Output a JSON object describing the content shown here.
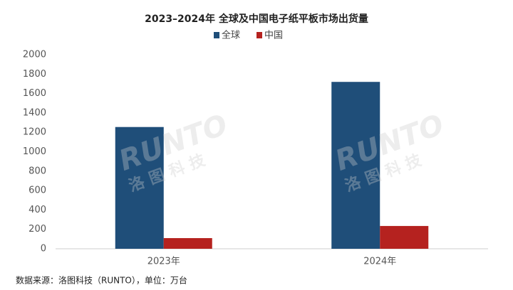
{
  "chart_data": {
    "type": "bar",
    "title": "2023–2024年 全球及中国电子纸平板市场出货量",
    "categories": [
      "2023年",
      "2024年"
    ],
    "series": [
      {
        "name": "全球",
        "color": "#1f4e79",
        "values": [
          1255,
          1720
        ]
      },
      {
        "name": "中国",
        "color": "#b5221f",
        "values": [
          110,
          235
        ]
      }
    ],
    "ylim": [
      0,
      2000
    ],
    "yticks": [
      0,
      200,
      400,
      600,
      800,
      1000,
      1200,
      1400,
      1600,
      1800,
      2000
    ],
    "grid": false,
    "legend": "top",
    "watermark": [
      "RUNTO",
      "洛图科技"
    ],
    "source": "数据来源：洛图科技（RUNTO），单位：万台"
  }
}
